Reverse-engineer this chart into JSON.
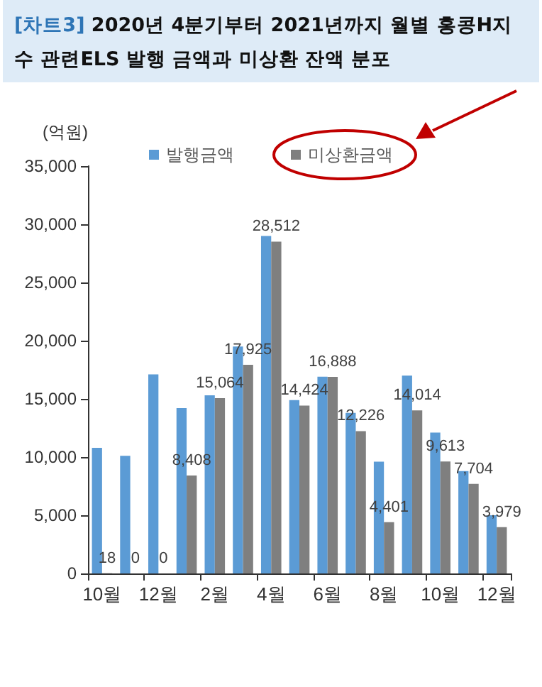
{
  "chart_data": {
    "type": "bar",
    "title": "[차트3] 2020년 4분기부터 2021년까지 월별 홍콩H지수 관련ELS 발행 금액과 미상환 잔액 분포",
    "ylabel": "(억원)",
    "categories": [
      "10월",
      null,
      "12월",
      null,
      "2월",
      null,
      "4월",
      null,
      "6월",
      null,
      "8월",
      null,
      "10월",
      null,
      "12월"
    ],
    "series": [
      {
        "name": "발행금액",
        "color": "#5b9bd5",
        "values": [
          10800,
          10100,
          17100,
          14200,
          15300,
          19500,
          29000,
          14900,
          16900,
          13800,
          9600,
          17000,
          12100,
          8800,
          5000
        ]
      },
      {
        "name": "미상환금액",
        "color": "#7f7f7f",
        "values": [
          18,
          0,
          0,
          8408,
          15064,
          17925,
          28512,
          14424,
          16888,
          12226,
          4401,
          14014,
          9613,
          7704,
          3979
        ],
        "value_labels": [
          "18",
          "0",
          "0",
          "8,408",
          "15,064",
          "17,925",
          "28,512",
          "14,424",
          "16,888",
          "12,226",
          "4,401",
          "14,014",
          "9,613",
          "7,704",
          "3,979"
        ]
      }
    ],
    "ylim": [
      0,
      35000
    ],
    "yticks": [
      {
        "value": 0,
        "label": "0"
      },
      {
        "value": 5000,
        "label": "5,000"
      },
      {
        "value": 10000,
        "label": "10,000"
      },
      {
        "value": 15000,
        "label": "15,000"
      },
      {
        "value": 20000,
        "label": "20,000"
      },
      {
        "value": 25000,
        "label": "25,000"
      },
      {
        "value": 30000,
        "label": "30,000"
      },
      {
        "value": 35000,
        "label": "35,000"
      }
    ],
    "grid": false,
    "legend": "top"
  }
}
